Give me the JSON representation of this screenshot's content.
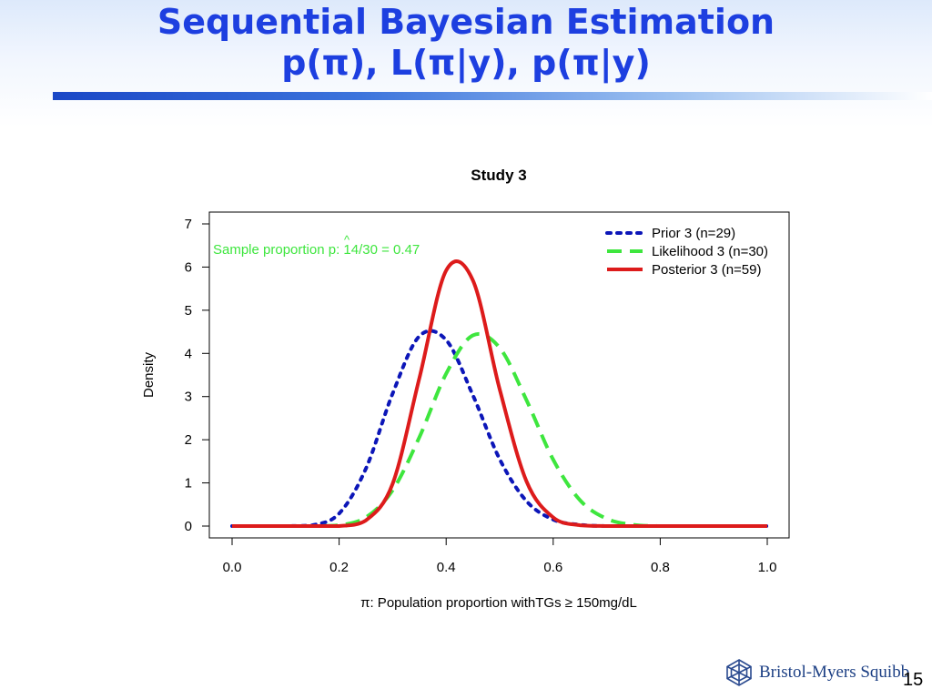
{
  "slide": {
    "title_line1": "Sequential Bayesian Estimation",
    "title_line2": "p(π), L(π|y), p(π|y)",
    "logo_text": "Bristol-Myers Squibb",
    "page_number": "15"
  },
  "chart_data": {
    "type": "line",
    "title": "Study 3",
    "xlabel": "π: Population proportion withTGs ≥ 150mg/dL",
    "ylabel": "Density",
    "xlim": [
      0.0,
      1.0
    ],
    "ylim": [
      0,
      7
    ],
    "x_ticks": [
      0.0,
      0.2,
      0.4,
      0.6,
      0.8,
      1.0
    ],
    "x_tick_labels": [
      "0.0",
      "0.2",
      "0.4",
      "0.6",
      "0.8",
      "1.0"
    ],
    "y_ticks": [
      0,
      1,
      2,
      3,
      4,
      5,
      6,
      7
    ],
    "y_tick_labels": [
      "0",
      "1",
      "2",
      "3",
      "4",
      "5",
      "6",
      "7"
    ],
    "grid": false,
    "legend_position": "top-right",
    "annotation": {
      "text_before": "Sample proportion ",
      "symbol": "p",
      "hat": "^",
      "text_after": ": 14/30 = 0.47",
      "color": "#3ee63e"
    },
    "x": [
      0.0,
      0.05,
      0.1,
      0.15,
      0.2,
      0.25,
      0.3,
      0.35,
      0.4,
      0.45,
      0.5,
      0.55,
      0.6,
      0.65,
      0.7,
      0.75,
      0.8,
      0.85,
      0.9,
      0.95,
      1.0
    ],
    "series": [
      {
        "name": "Prior 3 (n=29)",
        "style": "dotted",
        "color": "#0c16b8",
        "values": [
          0.0,
          0.0,
          0.0,
          0.02,
          0.29,
          1.33,
          3.07,
          4.4,
          4.31,
          3.03,
          1.55,
          0.58,
          0.15,
          0.03,
          0.0,
          0.0,
          0.0,
          0.0,
          0.0,
          0.0,
          0.0
        ]
      },
      {
        "name": "Likelihood 3 (n=30)",
        "style": "dashed",
        "color": "#3ee63e",
        "values": [
          0.0,
          0.0,
          0.0,
          0.0,
          0.02,
          0.2,
          0.83,
          2.06,
          3.53,
          4.42,
          4.13,
          2.92,
          1.54,
          0.6,
          0.17,
          0.03,
          0.0,
          0.0,
          0.0,
          0.0,
          0.0
        ]
      },
      {
        "name": "Posterior 3 (n=59)",
        "style": "solid",
        "color": "#dd1b1b",
        "values": [
          0.0,
          0.0,
          0.0,
          0.0,
          0.0,
          0.13,
          0.98,
          3.43,
          5.92,
          5.69,
          3.17,
          1.04,
          0.2,
          0.02,
          0.0,
          0.0,
          0.0,
          0.0,
          0.0,
          0.0,
          0.0
        ]
      }
    ]
  }
}
